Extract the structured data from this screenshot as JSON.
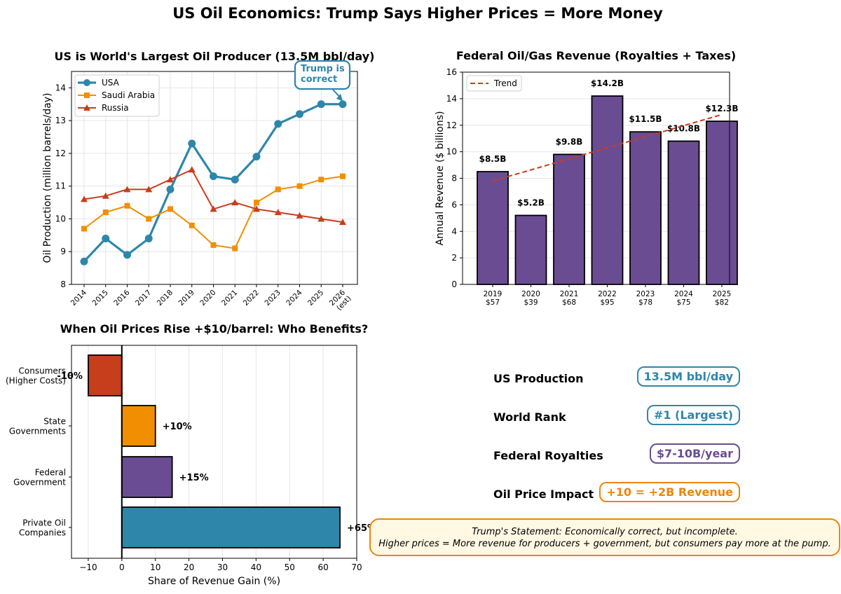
{
  "title": "US Oil Economics: Trump Says Higher Prices = More Money",
  "colors": {
    "usa": "#2E86AB",
    "saudi": "#F18F01",
    "russia": "#C73E1D",
    "purple": "#6A4C93",
    "orange": "#E8870E",
    "trend": "#C73E1D"
  },
  "chart_data": [
    {
      "type": "line",
      "title": "US is World's Largest Oil Producer (13.5M bbl/day)",
      "xlabel": "",
      "ylabel": "Oil Production (million barrels/day)",
      "ylim": [
        8,
        14.5
      ],
      "yticks": [
        "8",
        "9",
        "10",
        "11",
        "12",
        "13",
        "14"
      ],
      "categories": [
        "2014",
        "2015",
        "2016",
        "2017",
        "2018",
        "2019",
        "2020",
        "2021",
        "2022",
        "2023",
        "2024",
        "2025",
        "2026\n(est)"
      ],
      "series": [
        {
          "name": "USA",
          "marker": "circle",
          "values": [
            8.7,
            9.4,
            8.9,
            9.4,
            10.9,
            12.3,
            11.3,
            11.2,
            11.9,
            12.9,
            13.2,
            13.5,
            13.5
          ]
        },
        {
          "name": "Saudi Arabia",
          "marker": "square",
          "values": [
            9.7,
            10.2,
            10.4,
            10.0,
            10.3,
            9.8,
            9.2,
            9.1,
            10.5,
            10.9,
            11.0,
            11.2,
            11.3
          ]
        },
        {
          "name": "Russia",
          "marker": "triangle",
          "values": [
            10.6,
            10.7,
            10.9,
            10.9,
            11.2,
            11.5,
            10.3,
            10.5,
            10.3,
            10.2,
            10.1,
            10.0,
            9.9
          ]
        }
      ],
      "annotation": "Trump is\ncorrect",
      "legend_position": "upper-left",
      "grid": true
    },
    {
      "type": "bar",
      "title": "Federal Oil/Gas Revenue (Royalties + Taxes)",
      "ylabel": "Annual Revenue ($ billions)",
      "ylim": [
        0,
        16
      ],
      "yticks": [
        "0",
        "2",
        "4",
        "6",
        "8",
        "10",
        "12",
        "14",
        "16"
      ],
      "categories": [
        "2019\n$57",
        "2020\n$39",
        "2021\n$68",
        "2022\n$95",
        "2023\n$78",
        "2024\n$75",
        "2025\n$82"
      ],
      "values": [
        8.5,
        5.2,
        9.8,
        14.2,
        11.5,
        10.8,
        12.3
      ],
      "data_labels": [
        "$8.5B",
        "$5.2B",
        "$9.8B",
        "$14.2B",
        "$11.5B",
        "$10.8B",
        "$12.3B"
      ],
      "trend": {
        "name": "Trend",
        "start": 7.8,
        "end": 12.8
      },
      "legend_position": "upper-left",
      "grid": true
    },
    {
      "type": "bar",
      "orientation": "horizontal",
      "title": "When Oil Prices Rise +$10/barrel: Who Benefits?",
      "xlabel": "Share of Revenue Gain (%)",
      "xlim": [
        -15,
        70
      ],
      "xticks": [
        "−10",
        "0",
        "10",
        "20",
        "30",
        "40",
        "50",
        "60",
        "70"
      ],
      "categories": [
        "Consumers\n(Higher Costs)",
        "State\nGovernments",
        "Federal\nGovernment",
        "Private Oil\nCompanies"
      ],
      "values": [
        -10,
        10,
        15,
        65
      ],
      "data_labels": [
        "-10%",
        "+10%",
        "+15%",
        "+65%"
      ],
      "grid": true
    }
  ],
  "metrics": [
    {
      "label": "US Production",
      "value": "13.5M bbl/day",
      "color": "#2E86AB"
    },
    {
      "label": "World Rank",
      "value": "#1 (Largest)",
      "color": "#2E86AB"
    },
    {
      "label": "Federal Royalties",
      "value": "$7-10B/year",
      "color": "#6A4C93"
    },
    {
      "label": "Oil Price Impact",
      "value": "+10 = +2B Revenue",
      "color": "#E8870E"
    }
  ],
  "statement": {
    "line1": "Trump's Statement: Economically correct, but incomplete.",
    "line2": "Higher prices = More revenue for producers + government, but consumers pay more at the pump."
  }
}
